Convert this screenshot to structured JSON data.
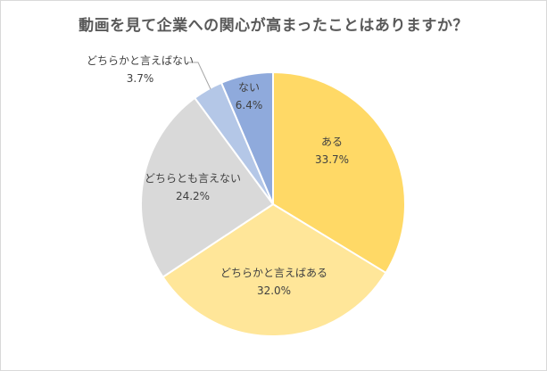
{
  "chart_data": {
    "type": "pie",
    "title": "動画を見て企業への関心が高まったことはありますか？",
    "start_angle_deg": 0,
    "direction": "clockwise",
    "slices": [
      {
        "label": "ある",
        "value": 33.7,
        "value_label": "33.7%",
        "color": "#ffd966"
      },
      {
        "label": "どちらかと言えばある",
        "value": 32.0,
        "value_label": "32.0%",
        "color": "#ffe699"
      },
      {
        "label": "どちらとも言えない",
        "value": 24.2,
        "value_label": "24.2%",
        "color": "#d9d9d9"
      },
      {
        "label": "どちらかと言えばない",
        "value": 3.7,
        "value_label": "3.7%",
        "color": "#b4c7e7"
      },
      {
        "label": "ない",
        "value": 6.4,
        "value_label": "6.4%",
        "color": "#8faadc"
      }
    ]
  }
}
